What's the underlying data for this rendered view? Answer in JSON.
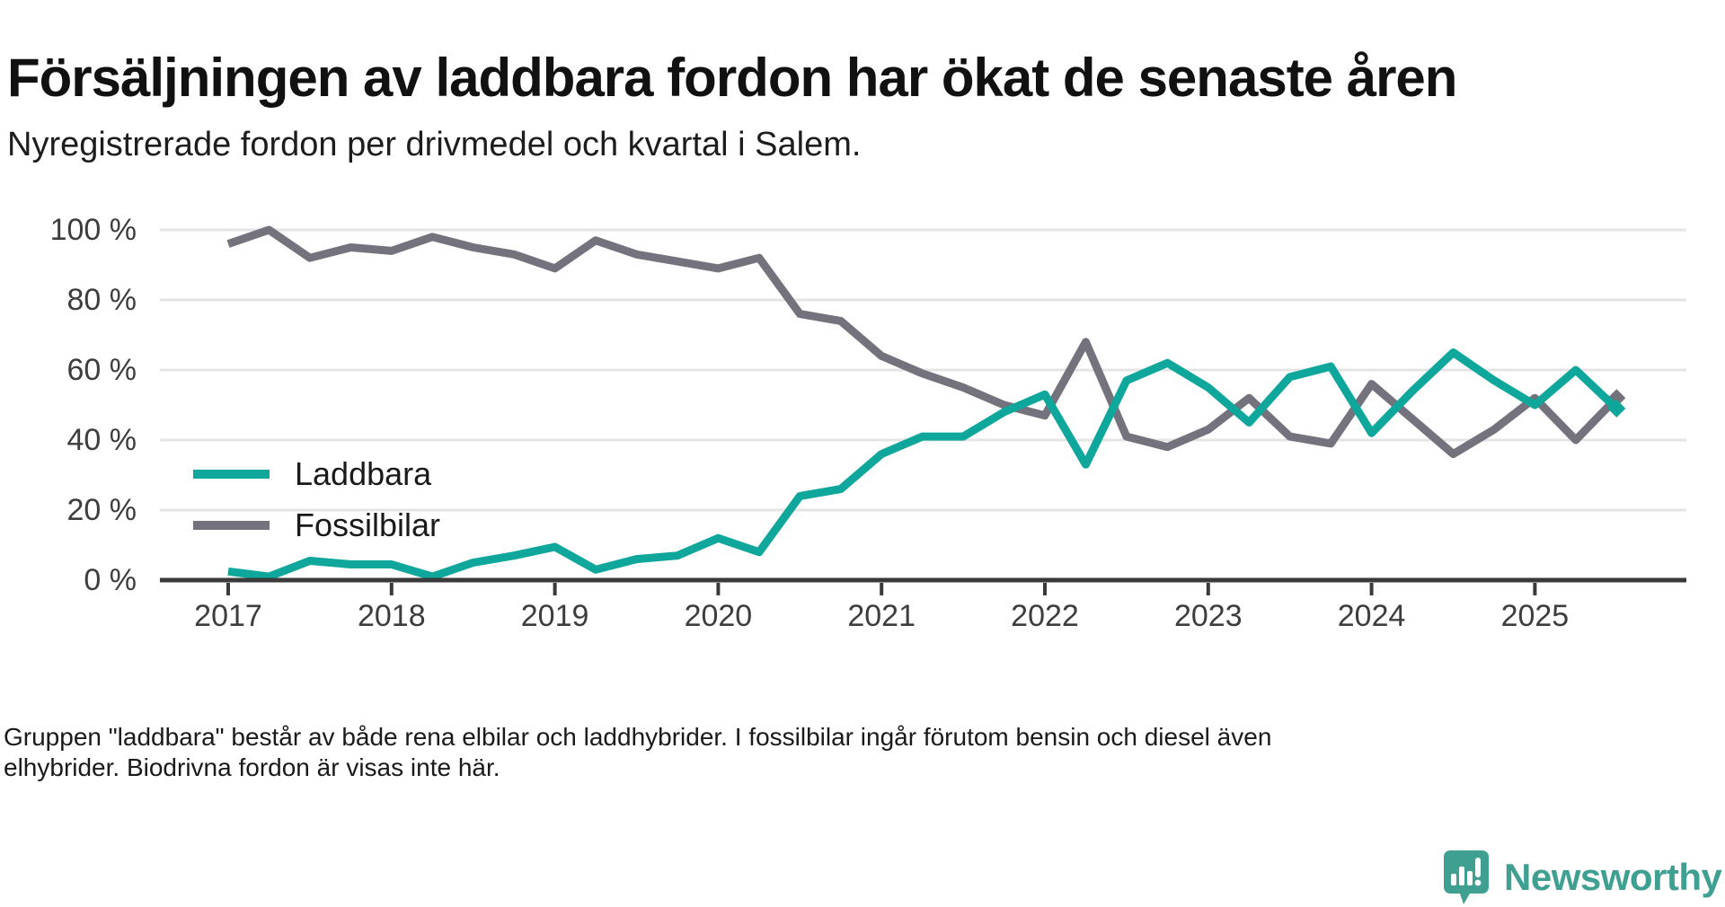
{
  "header": {
    "title": "Försäljningen av laddbara fordon har ökat de senaste åren",
    "subtitle": "Nyregistrerade fordon per drivmedel och kvartal i Salem."
  },
  "chart_data": {
    "type": "line",
    "unit": "%",
    "x_tick_labels": [
      "2017",
      "2018",
      "2019",
      "2020",
      "2021",
      "2022",
      "2023",
      "2024",
      "2025"
    ],
    "quarters": "Q1 2017 through Q3 2025, one value per quarter",
    "series": [
      {
        "name": "Fossilbilar",
        "color": "#74727C",
        "values": [
          96,
          100,
          92,
          95,
          94,
          98,
          95,
          93,
          89,
          97,
          93,
          91,
          89,
          92,
          76,
          74,
          64,
          59,
          55,
          50,
          47,
          68,
          41,
          38,
          43,
          52,
          41,
          39,
          56,
          46,
          36,
          43,
          52,
          40,
          52
        ]
      },
      {
        "name": "Laddbara",
        "color": "#0FA79C",
        "values": [
          2.5,
          1,
          5.5,
          4.5,
          4.5,
          1,
          5,
          7,
          9.5,
          3,
          6,
          7,
          12,
          8,
          24,
          26,
          36,
          41,
          41,
          48,
          53,
          33,
          57,
          62,
          55,
          45,
          58,
          61,
          42,
          54,
          65,
          57,
          50,
          60,
          49
        ]
      }
    ],
    "legend_order": [
      "Laddbara",
      "Fossilbilar"
    ],
    "y_ticks": [
      "0 %",
      "20 %",
      "40 %",
      "60 %",
      "80 %",
      "100 %"
    ],
    "y_tick_values": [
      0,
      20,
      40,
      60,
      80,
      100
    ],
    "ylim": [
      0,
      100
    ],
    "grid": true,
    "gridline_color": "#e4e4e4",
    "axis_color": "#3a3a3a",
    "legend_position": "inside-left"
  },
  "legend": {
    "item1": "Laddbara",
    "item2": "Fossilbilar"
  },
  "footer": {
    "note": "Gruppen \"laddbara\" består av både rena elbilar och laddhybrider. I fossilbilar ingår förutom bensin och diesel även elhybrider. Biodrivna fordon är visas inte här."
  },
  "logo": {
    "text": "Newsworthy",
    "color": "#3FA092"
  }
}
